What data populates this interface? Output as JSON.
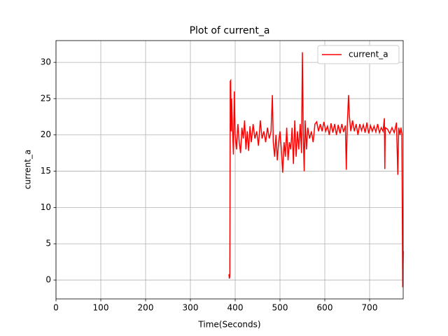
{
  "chart_data": {
    "type": "line",
    "title": "Plot of current_a",
    "x_label": "Time(Seconds)",
    "y_label": "current_a",
    "x": [
      386,
      387,
      388,
      389,
      390,
      391,
      392,
      394,
      396,
      398,
      400,
      403,
      406,
      409,
      412,
      415,
      418,
      421,
      424,
      427,
      430,
      433,
      436,
      440,
      444,
      448,
      452,
      456,
      460,
      464,
      468,
      472,
      476,
      480,
      483,
      485,
      488,
      491,
      494,
      497,
      500,
      503,
      506,
      509,
      512,
      515,
      518,
      521,
      524,
      527,
      530,
      533,
      536,
      539,
      542,
      545,
      548,
      550,
      552,
      554,
      556,
      559,
      562,
      566,
      570,
      574,
      578,
      582,
      586,
      590,
      594,
      598,
      602,
      606,
      610,
      614,
      618,
      622,
      626,
      630,
      634,
      638,
      642,
      646,
      648,
      650,
      653,
      655,
      658,
      662,
      666,
      670,
      674,
      678,
      682,
      686,
      690,
      694,
      698,
      702,
      706,
      710,
      714,
      718,
      722,
      726,
      730,
      733,
      734,
      735,
      740,
      745,
      750,
      755,
      760,
      763,
      765,
      768,
      770,
      772,
      774,
      775
    ],
    "series": [
      {
        "name": "current_a",
        "color": "#ff0000",
        "values": [
          0.8,
          0.2,
          0.5,
          27.4,
          27.5,
          20.5,
          25,
          21,
          17.3,
          26,
          20,
          18,
          21.5,
          19,
          17.5,
          21,
          19.5,
          22,
          18,
          20.5,
          17.8,
          21.2,
          19,
          21.5,
          19.5,
          20.5,
          18.5,
          22,
          19.5,
          20.5,
          19,
          21,
          19.5,
          20.5,
          25.5,
          19,
          17,
          20,
          16.5,
          19,
          20.5,
          18,
          14.8,
          19,
          17,
          21,
          16.5,
          19,
          18,
          21,
          16,
          22,
          17,
          20.5,
          18,
          21.5,
          17.5,
          31.4,
          20,
          15,
          22,
          18,
          21,
          19.5,
          20.5,
          19,
          21.5,
          21.8,
          20.5,
          21.5,
          20.5,
          21.8,
          20.5,
          21.2,
          20,
          21.6,
          20.3,
          21.5,
          20,
          21.4,
          20.2,
          21.5,
          20.4,
          21.3,
          15.2,
          21,
          25.5,
          22.5,
          20.5,
          22,
          20.5,
          21.5,
          20,
          21.5,
          20.6,
          21.4,
          20.3,
          21.7,
          20.2,
          21.3,
          20.5,
          21.2,
          20.4,
          21.5,
          20.3,
          21,
          20.5,
          22.3,
          15.3,
          21,
          20.8,
          20.2,
          21,
          20.3,
          21.7,
          14.5,
          21,
          20,
          21,
          20.2,
          -1,
          4
        ]
      }
    ],
    "xlim": [
      0,
      775
    ],
    "ylim": [
      -2.6,
      33
    ],
    "xticks": [
      0,
      100,
      200,
      300,
      400,
      500,
      600,
      700
    ],
    "yticks": [
      0,
      5,
      10,
      15,
      20,
      25,
      30
    ],
    "grid": true,
    "legend": "upper-right"
  }
}
